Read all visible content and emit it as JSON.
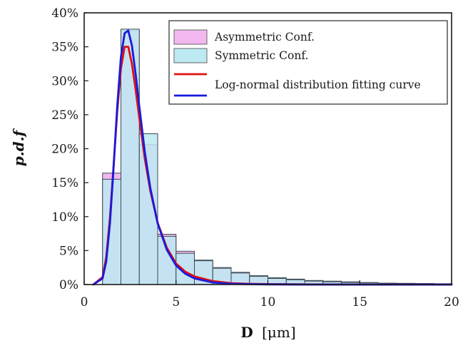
{
  "chart_data": {
    "type": "histogram",
    "title": "",
    "xlabel_bold": "D",
    "xlabel_unit": "[μm]",
    "ylabel": "p.d.f",
    "xlim": [
      0,
      20
    ],
    "ylim": [
      0,
      0.4
    ],
    "x_ticks": [
      "0",
      "5",
      "10",
      "15",
      "20"
    ],
    "y_ticks": [
      "0%",
      "5%",
      "10%",
      "15%",
      "20%",
      "25%",
      "30%",
      "35%",
      "40%"
    ],
    "bin_edges": [
      1,
      2,
      3,
      4,
      5,
      6,
      7,
      8,
      9,
      10,
      11,
      12,
      13,
      14,
      15,
      16,
      17,
      18,
      19,
      20
    ],
    "series": [
      {
        "name": "Asymmetric Conf.",
        "color": "#f2b8ef",
        "values": [
          0.164,
          0.374,
          0.206,
          0.074,
          0.049,
          0.036,
          0.025,
          0.018,
          0.013,
          0.01,
          0.008,
          0.006,
          0.005,
          0.004,
          0.003,
          0.002,
          0.0018,
          0.0015,
          0.0012
        ]
      },
      {
        "name": "Symmetric Conf.",
        "color": "#bde9f2",
        "values": [
          0.155,
          0.376,
          0.222,
          0.071,
          0.046,
          0.035,
          0.024,
          0.017,
          0.012,
          0.009,
          0.007,
          0.005,
          0.004,
          0.003,
          0.0025,
          0.002,
          0.0015,
          0.0012,
          0.001
        ]
      }
    ],
    "curves": [
      {
        "name": "Log-normal distribution fitting curve",
        "color": "#e01010",
        "x": [
          0.5,
          1.0,
          1.2,
          1.4,
          1.6,
          1.8,
          2.0,
          2.2,
          2.4,
          2.6,
          2.8,
          3.0,
          3.3,
          3.6,
          4.0,
          4.5,
          5.0,
          5.5,
          6,
          7,
          8,
          9,
          10,
          12,
          15,
          20
        ],
        "y": [
          0.0,
          0.011,
          0.04,
          0.098,
          0.175,
          0.254,
          0.318,
          0.35,
          0.35,
          0.325,
          0.287,
          0.245,
          0.185,
          0.138,
          0.091,
          0.054,
          0.031,
          0.019,
          0.012,
          0.005,
          0.002,
          0.001,
          0.0006,
          0.0002,
          0.0,
          0.0
        ]
      },
      {
        "name": "Log-normal distribution fitting curve",
        "color": "#1a1adc",
        "x": [
          0.5,
          1.0,
          1.2,
          1.4,
          1.6,
          1.8,
          2.0,
          2.2,
          2.4,
          2.6,
          2.8,
          3.0,
          3.3,
          3.6,
          4.0,
          4.5,
          5.0,
          5.5,
          6,
          7,
          8,
          9,
          10,
          12,
          15,
          20
        ],
        "y": [
          0.0,
          0.009,
          0.034,
          0.09,
          0.172,
          0.262,
          0.335,
          0.37,
          0.374,
          0.352,
          0.31,
          0.262,
          0.195,
          0.142,
          0.09,
          0.051,
          0.028,
          0.016,
          0.009,
          0.003,
          0.001,
          0.0005,
          0.0002,
          0.0,
          0.0,
          0.0
        ]
      }
    ],
    "legend": {
      "placement": "top-right",
      "entries": [
        {
          "label": "Asymmetric Conf.",
          "kind": "patch",
          "color": "#f2b8ef"
        },
        {
          "label": "Symmetric Conf.",
          "kind": "patch",
          "color": "#bde9f2"
        },
        {
          "label": "",
          "kind": "line",
          "color": "#e01010"
        },
        {
          "label": "Log-normal distribution fitting curve",
          "kind": "line",
          "color": "#1a1adc"
        }
      ]
    },
    "grid": false
  }
}
